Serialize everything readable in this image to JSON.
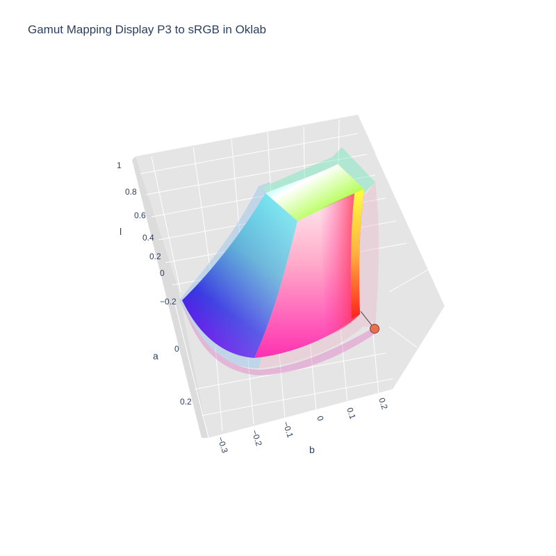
{
  "chart_data": {
    "type": "3d-surface",
    "title": "Gamut Mapping Display P3 to sRGB in Oklab",
    "axes": {
      "b": {
        "label": "b",
        "ticks": [
          "−0.3",
          "−0.2",
          "−0.1",
          "0",
          "0.1",
          "0.2"
        ]
      },
      "a": {
        "label": "a",
        "ticks": [
          "−0.2",
          "0",
          "0.2"
        ]
      },
      "l": {
        "label": "l",
        "ticks": [
          "0",
          "0.2",
          "0.4",
          "0.6",
          "0.8",
          "1"
        ]
      }
    },
    "background": "#e5e5e5",
    "grid": true,
    "surfaces": [
      {
        "name": "Display P3 gamut",
        "opacity": 0.3
      },
      {
        "name": "sRGB gamut",
        "opacity": 1.0
      }
    ],
    "mapping": {
      "from_space": "Display P3",
      "to_space": "sRGB",
      "point_color": "#e8704a"
    }
  }
}
